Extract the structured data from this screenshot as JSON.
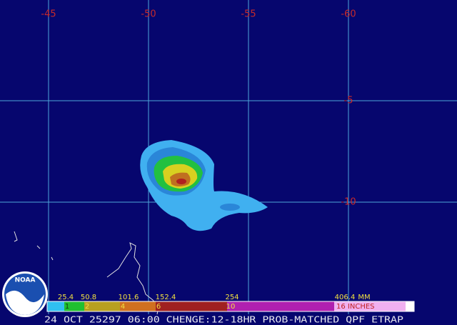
{
  "map": {
    "lon_labels": [
      "-45",
      "-50",
      "-55",
      "-60"
    ],
    "lat_labels": [
      "-5",
      "-10"
    ]
  },
  "legend": {
    "mm_labels": [
      "25.4",
      "50.8",
      "101.6",
      "152.4",
      "254",
      "406.4",
      "MM"
    ],
    "inch_labels": [
      "1",
      "2",
      "4",
      "6",
      "10",
      "16 INCHES"
    ]
  },
  "logo": "NOAA",
  "caption": "24 OCT 25297 06:00 CHENGE:12-18HR PROB-MATCHED QPF ETRAP"
}
